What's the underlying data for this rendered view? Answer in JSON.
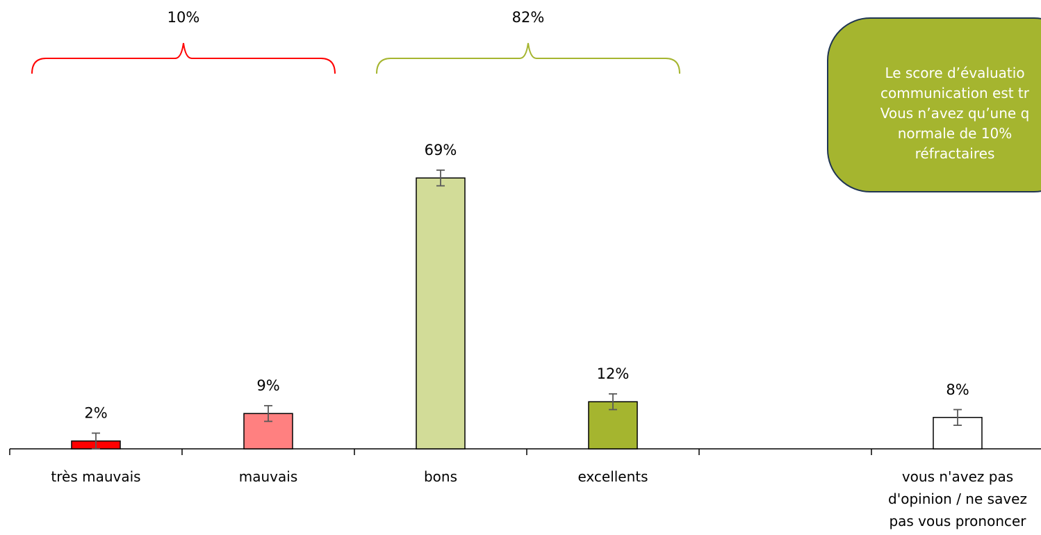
{
  "chart_data": {
    "type": "bar",
    "categories": [
      "très mauvais",
      "mauvais",
      "bons",
      "excellents",
      "",
      "vous n'avez pas d'opinion / ne savez pas vous prononcer"
    ],
    "category_label_lines": [
      [
        "très mauvais"
      ],
      [
        "mauvais"
      ],
      [
        "bons"
      ],
      [
        "excellents"
      ],
      [],
      [
        "vous n'avez pas",
        "d'opinion / ne savez",
        "pas vous prononcer"
      ]
    ],
    "values": [
      2,
      9,
      69,
      12,
      null,
      8
    ],
    "labels": [
      "2%",
      "9%",
      "69%",
      "12%",
      "",
      "8%"
    ],
    "error_margin": 2,
    "colors": [
      "#ff0000",
      "#ff8080",
      "#d2dc98",
      "#a5b52f",
      "#ffffff",
      "#ffffff"
    ],
    "ylim": [
      0,
      100
    ],
    "groups": [
      {
        "label": "10%",
        "from": 0,
        "to": 1,
        "color": "#ff0000"
      },
      {
        "label": "82%",
        "from": 2,
        "to": 3,
        "color": "#a5b52f"
      }
    ]
  },
  "callout": {
    "lines": [
      "Le score d’évaluatio",
      "communication est tr",
      "Vous n’avez qu’une q",
      "normale de 10%",
      "réfractaires"
    ],
    "background": "#a5b52f",
    "border": "#1f3553"
  }
}
